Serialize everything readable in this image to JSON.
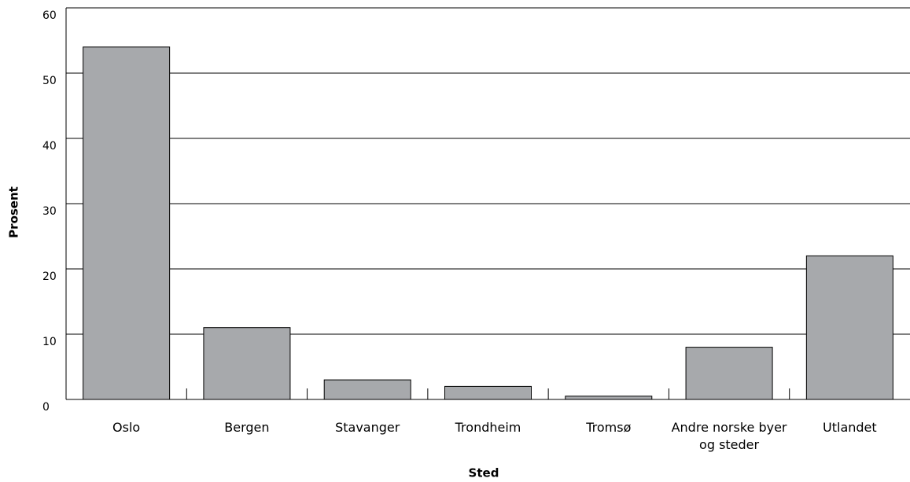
{
  "chart_data": {
    "type": "bar",
    "categories": [
      "Oslo",
      "Bergen",
      "Stavanger",
      "Trondheim",
      "Tromsø",
      "Andre norske byer og steder",
      "Utlandet"
    ],
    "values": [
      54,
      11,
      3,
      2,
      0.5,
      8,
      22
    ],
    "color": "#a7a9ac",
    "xlabel": "Sted",
    "ylabel": "Prosent",
    "ylim": [
      0,
      60
    ],
    "yticks": [
      0,
      10,
      20,
      30,
      40,
      50,
      60
    ],
    "grid": true
  }
}
